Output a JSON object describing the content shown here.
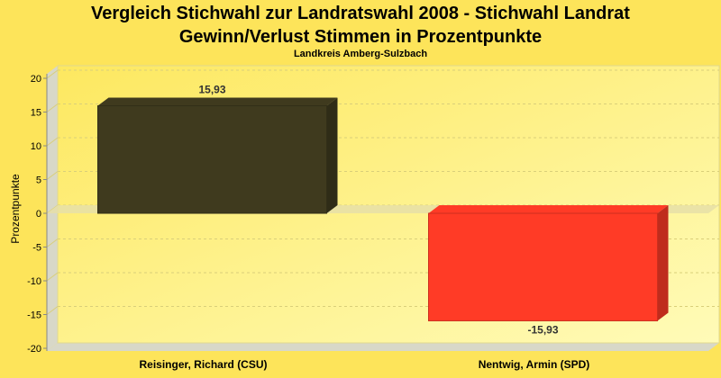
{
  "header": {
    "title_line1": "Vergleich Stichwahl zur Landratswahl 2008 - Stichwahl Landrat",
    "title_line2": "Gewinn/Verlust Stimmen in Prozentpunkte",
    "subtitle": "Landkreis Amberg-Sulzbach"
  },
  "colors": {
    "background": "#fde45a",
    "series_positive": "#3f3a1e",
    "series_negative": "#ff3b26"
  },
  "chart_data": {
    "type": "bar",
    "title": "Vergleich Stichwahl zur Landratswahl 2008 - Stichwahl Landrat",
    "subtitle": "Landkreis Amberg-Sulzbach",
    "ylabel": "Prozentpunkte",
    "categories": [
      "Reisinger, Richard (CSU)",
      "Nentwig, Armin (SPD)"
    ],
    "values": [
      15.93,
      -15.93
    ],
    "value_labels": [
      "15,93",
      "-15,93"
    ],
    "bar_colors": [
      "#3f3a1e",
      "#ff3b26"
    ],
    "ylim": [
      -20,
      20
    ],
    "yticks": [
      20,
      15,
      10,
      5,
      0,
      -5,
      -10,
      -15,
      -20
    ],
    "ytick_labels": [
      "20",
      "15",
      "10",
      "5",
      "0",
      "-5",
      "-10",
      "-15",
      "-20"
    ],
    "grid": true,
    "style": "3d"
  }
}
